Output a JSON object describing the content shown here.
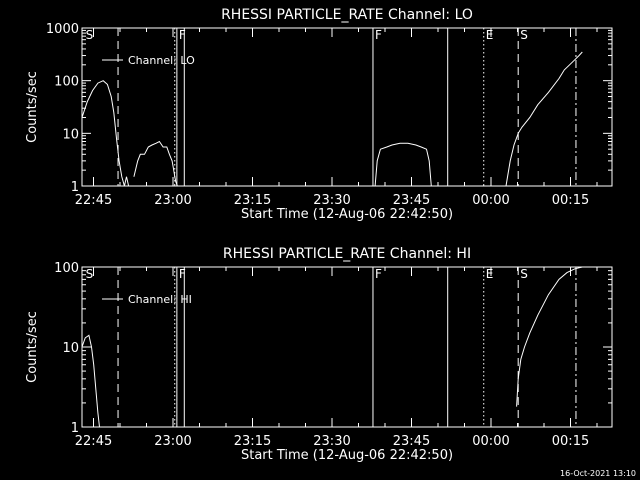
{
  "timestamp": "16-Oct-2021 13:10",
  "chart_data": [
    {
      "type": "line",
      "title": "RHESSI PARTICLE_RATE Channel: LO",
      "xlabel": "Start Time (12-Aug-06 22:42:50)",
      "ylabel": "Counts/sec",
      "yscale": "log",
      "ylim": [
        1,
        1000
      ],
      "xlim_minutes_from_start": [
        0,
        100
      ],
      "x_ticks": [
        {
          "t": 2.17,
          "label": "22:45"
        },
        {
          "t": 17.17,
          "label": "23:00"
        },
        {
          "t": 32.17,
          "label": "23:15"
        },
        {
          "t": 47.17,
          "label": "23:30"
        },
        {
          "t": 62.17,
          "label": "23:45"
        },
        {
          "t": 77.17,
          "label": "00:00"
        },
        {
          "t": 92.17,
          "label": "00:15"
        }
      ],
      "y_ticks": [
        {
          "v": 1,
          "label": "1"
        },
        {
          "v": 10,
          "label": "10"
        },
        {
          "v": 100,
          "label": "100"
        },
        {
          "v": 1000,
          "label": "1000"
        }
      ],
      "legend": {
        "label": "Channel: LO",
        "position": "top-left"
      },
      "markers": [
        {
          "t": 0.3,
          "label": "S",
          "style": "none"
        },
        {
          "t": 6.8,
          "label": "",
          "style": "dashed"
        },
        {
          "t": 17.5,
          "label": "",
          "style": "dotted"
        },
        {
          "t": 17.9,
          "label": "F",
          "style": "solid"
        },
        {
          "t": 19.3,
          "label": "",
          "style": "solid"
        },
        {
          "t": 54.9,
          "label": "F",
          "style": "solid"
        },
        {
          "t": 69.0,
          "label": "",
          "style": "solid"
        },
        {
          "t": 75.8,
          "label": "E",
          "style": "dotted"
        },
        {
          "t": 82.3,
          "label": "S",
          "style": "dashed"
        },
        {
          "t": 93.2,
          "label": "",
          "style": "dashdot"
        }
      ],
      "series": [
        {
          "name": "Channel: LO",
          "segments": [
            [
              [
                0,
                20
              ],
              [
                1,
                40
              ],
              [
                2,
                65
              ],
              [
                3,
                90
              ],
              [
                4,
                100
              ],
              [
                4.8,
                85
              ],
              [
                5.5,
                50
              ],
              [
                6,
                25
              ],
              [
                6.5,
                8
              ],
              [
                7,
                3
              ],
              [
                7.5,
                1.5
              ],
              [
                8,
                1
              ],
              [
                8.4,
                1.5
              ],
              [
                8.8,
                1
              ]
            ],
            [
              [
                9.8,
                1.5
              ],
              [
                10.5,
                3
              ],
              [
                11,
                4
              ],
              [
                11.8,
                4
              ],
              [
                12.5,
                5.5
              ],
              [
                13.2,
                6
              ],
              [
                14,
                6.5
              ],
              [
                14.6,
                7
              ],
              [
                15.3,
                5.5
              ],
              [
                16,
                5.5
              ],
              [
                16.5,
                4
              ],
              [
                17,
                3
              ],
              [
                17.3,
                2
              ],
              [
                17.5,
                1.5
              ],
              [
                17.7,
                1.2
              ],
              [
                18,
                1
              ]
            ],
            [
              [
                55.3,
                1
              ],
              [
                55.7,
                3
              ],
              [
                56.3,
                5
              ],
              [
                57.5,
                5.5
              ],
              [
                58.5,
                6
              ],
              [
                60,
                6.5
              ],
              [
                61.5,
                6.5
              ],
              [
                63,
                6
              ],
              [
                64,
                5.5
              ],
              [
                65,
                5
              ],
              [
                65.5,
                3
              ],
              [
                65.9,
                1
              ]
            ],
            [
              [
                80,
                1
              ],
              [
                80.8,
                3
              ],
              [
                81.5,
                6
              ],
              [
                82.3,
                10
              ],
              [
                83,
                13
              ],
              [
                84.5,
                20
              ],
              [
                86,
                35
              ],
              [
                88,
                60
              ],
              [
                90,
                110
              ],
              [
                91,
                160
              ],
              [
                92,
                200
              ],
              [
                93,
                250
              ],
              [
                93.8,
                300
              ],
              [
                94.4,
                350
              ]
            ]
          ]
        }
      ]
    },
    {
      "type": "line",
      "title": "RHESSI PARTICLE_RATE Channel: HI",
      "xlabel": "Start Time (12-Aug-06 22:42:50)",
      "ylabel": "Counts/sec",
      "yscale": "log",
      "ylim": [
        1,
        100
      ],
      "xlim_minutes_from_start": [
        0,
        100
      ],
      "x_ticks": [
        {
          "t": 2.17,
          "label": "22:45"
        },
        {
          "t": 17.17,
          "label": "23:00"
        },
        {
          "t": 32.17,
          "label": "23:15"
        },
        {
          "t": 47.17,
          "label": "23:30"
        },
        {
          "t": 62.17,
          "label": "23:45"
        },
        {
          "t": 77.17,
          "label": "00:00"
        },
        {
          "t": 92.17,
          "label": "00:15"
        }
      ],
      "y_ticks": [
        {
          "v": 1,
          "label": "1"
        },
        {
          "v": 10,
          "label": "10"
        },
        {
          "v": 100,
          "label": "100"
        }
      ],
      "legend": {
        "label": "Channel: HI",
        "position": "top-left"
      },
      "markers": [
        {
          "t": 0.3,
          "label": "S",
          "style": "none"
        },
        {
          "t": 6.8,
          "label": "",
          "style": "dashed"
        },
        {
          "t": 17.5,
          "label": "",
          "style": "dotted"
        },
        {
          "t": 17.9,
          "label": "F",
          "style": "solid"
        },
        {
          "t": 19.3,
          "label": "",
          "style": "solid"
        },
        {
          "t": 54.9,
          "label": "F",
          "style": "solid"
        },
        {
          "t": 69.0,
          "label": "",
          "style": "solid"
        },
        {
          "t": 75.8,
          "label": "E",
          "style": "dotted"
        },
        {
          "t": 82.3,
          "label": "S",
          "style": "dashed"
        },
        {
          "t": 93.2,
          "label": "",
          "style": "dashdot"
        }
      ],
      "series": [
        {
          "name": "Channel: HI",
          "segments": [
            [
              [
                0,
                10
              ],
              [
                0.6,
                13
              ],
              [
                1.3,
                14
              ],
              [
                1.8,
                10
              ],
              [
                2.2,
                6
              ],
              [
                2.6,
                3
              ],
              [
                3,
                1.5
              ],
              [
                3.3,
                1
              ]
            ],
            [
              [
                82,
                1.8
              ],
              [
                82.3,
                4
              ],
              [
                82.8,
                7
              ],
              [
                83.5,
                10
              ],
              [
                84.5,
                15
              ],
              [
                86,
                25
              ],
              [
                88,
                45
              ],
              [
                90,
                70
              ],
              [
                91.5,
                85
              ],
              [
                93,
                95
              ],
              [
                94.4,
                100
              ]
            ]
          ]
        }
      ]
    }
  ]
}
